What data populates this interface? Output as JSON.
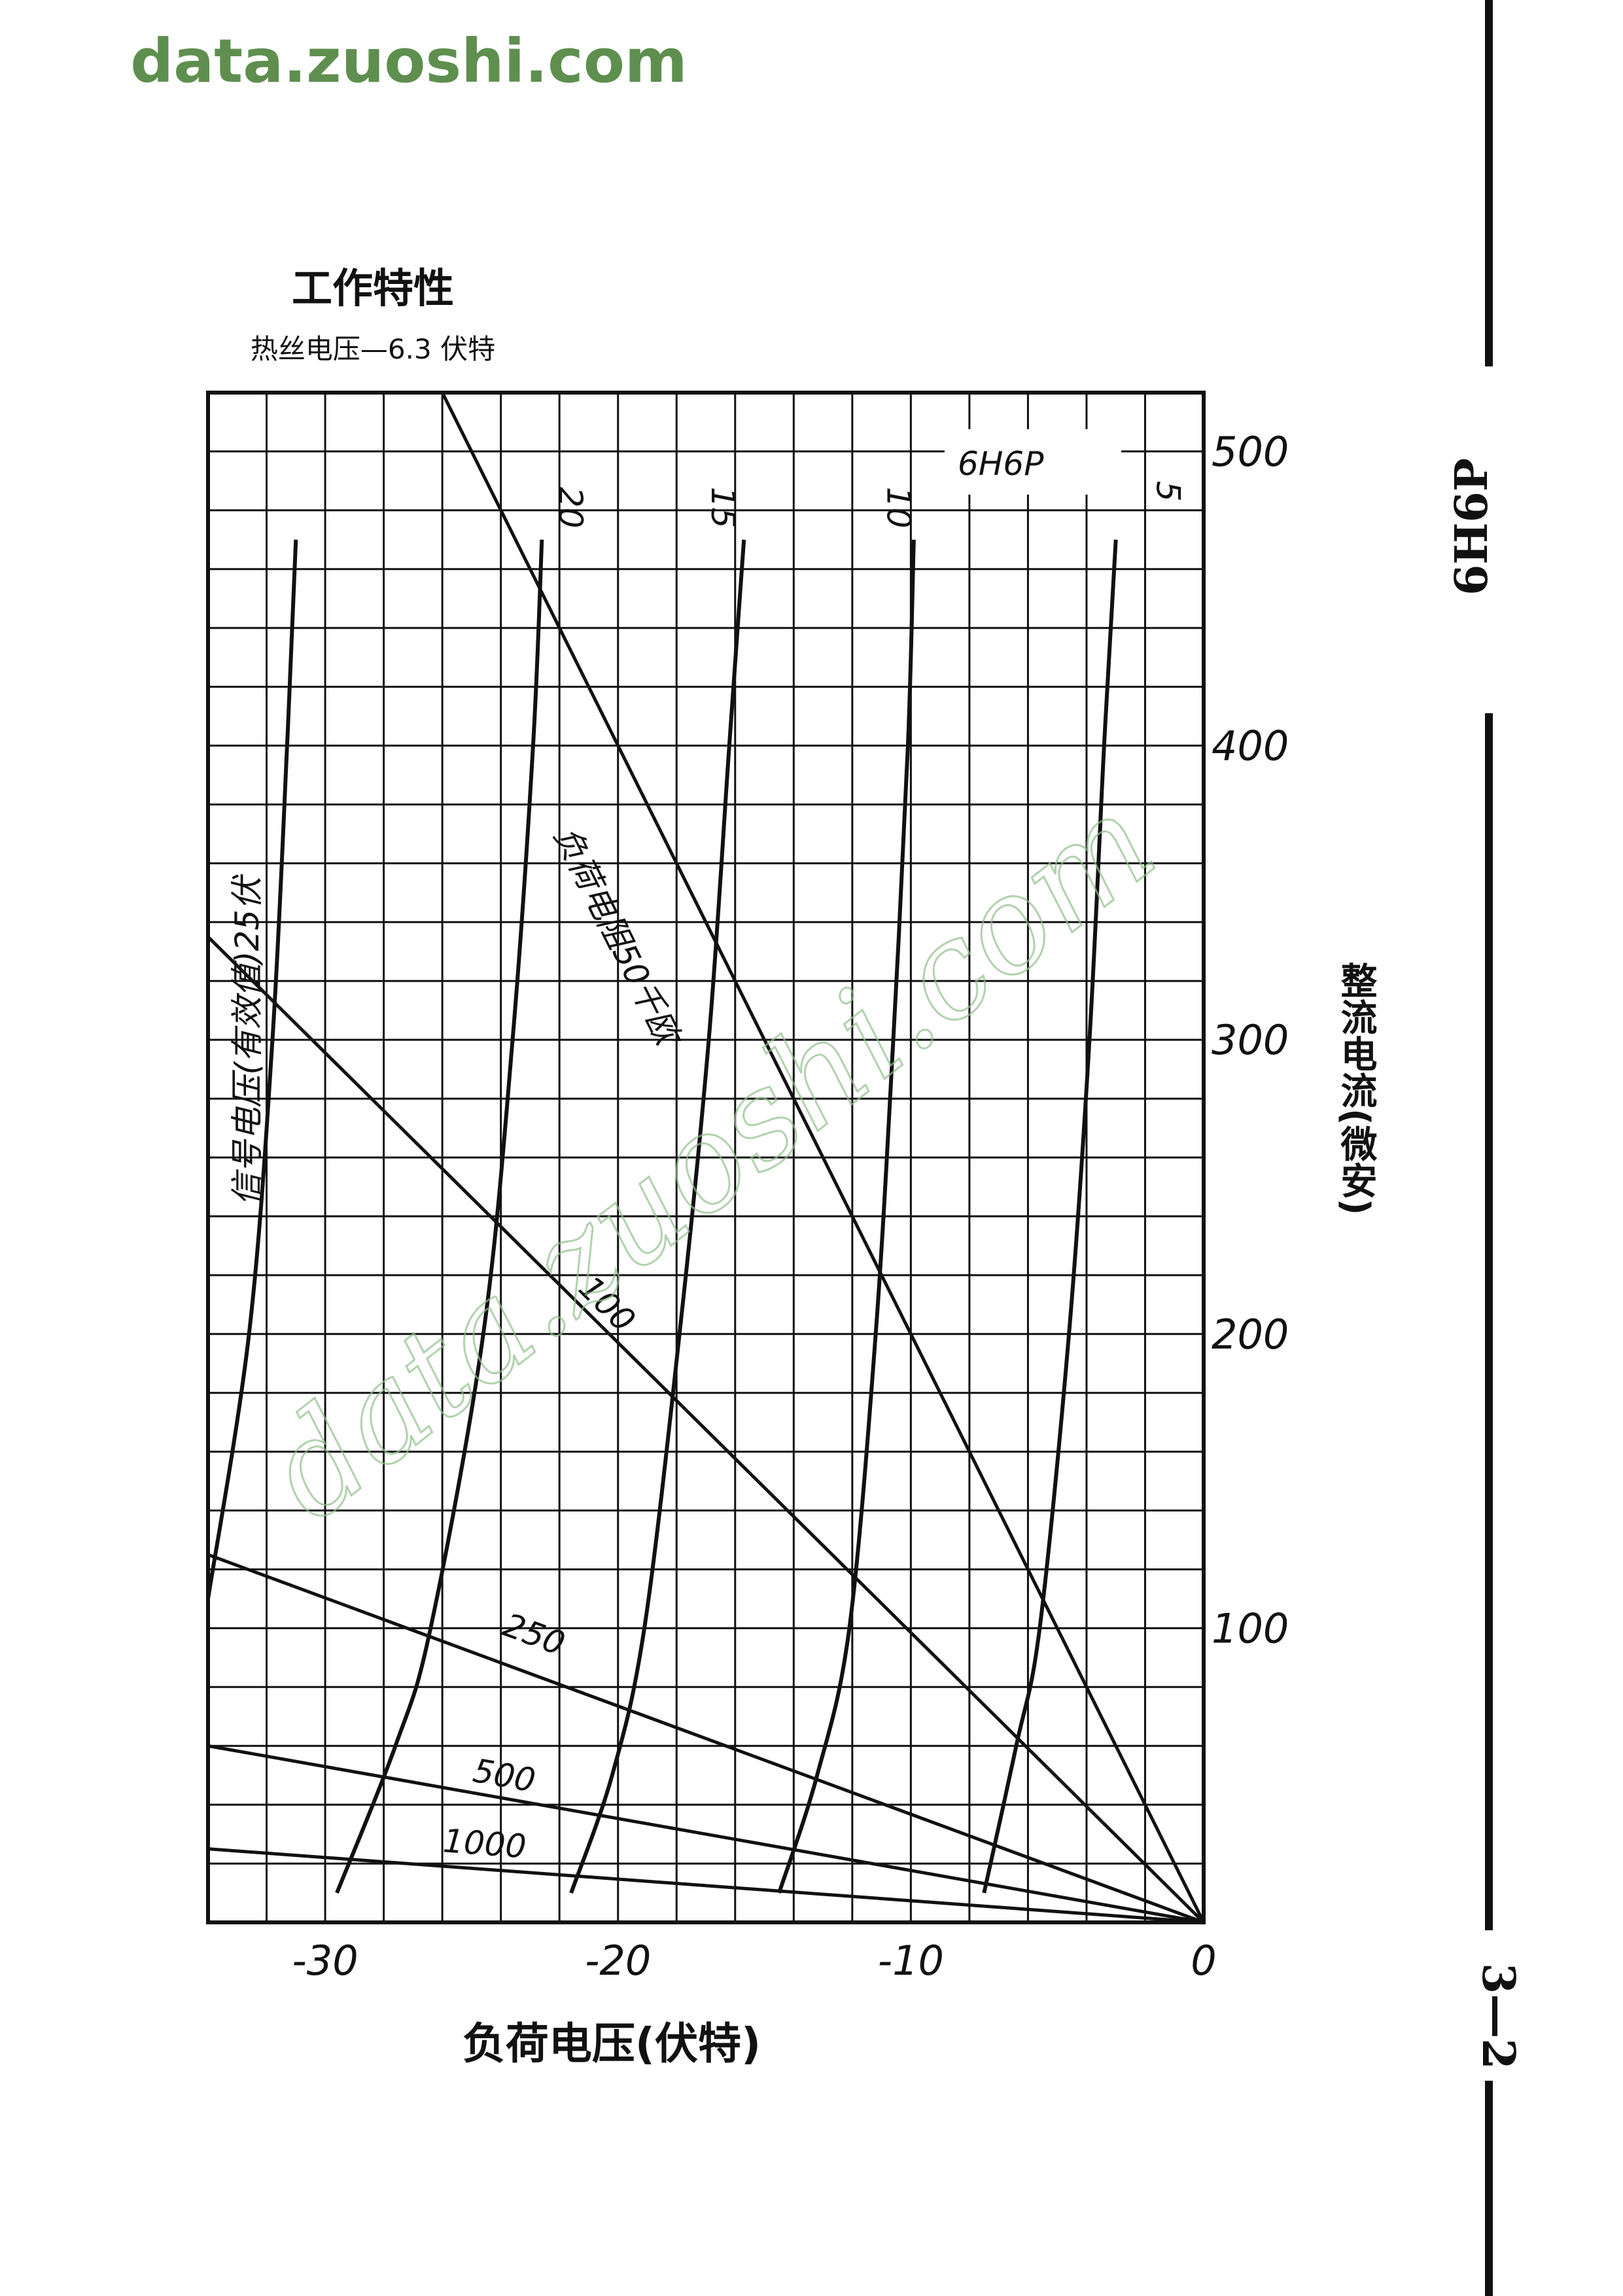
{
  "watermark": "data.zuoshi.com",
  "watermark_diagonal": "data.zuoshi.com",
  "side": {
    "tube_code": "6H6P",
    "page_number": "3—2"
  },
  "chart_data": {
    "type": "line",
    "title": "工作特性",
    "subtitle": "热丝电压—6.3 伏特",
    "tube_label": "6H6P",
    "xlabel": "负荷电压(伏特)",
    "ylabel": "整流电流(微安)",
    "xlim": [
      -34,
      0
    ],
    "ylim": [
      0,
      520
    ],
    "x_ticks": [
      -30,
      -20,
      -10,
      0
    ],
    "x_tick_labels": [
      "-30",
      "-20",
      "-10",
      "0"
    ],
    "y_ticks": [
      100,
      200,
      300,
      400,
      500
    ],
    "y_tick_labels": [
      "100",
      "200",
      "300",
      "400",
      "500"
    ],
    "grid": true,
    "signal_label": "信号电压(有效值)25伏",
    "signal_series": [
      {
        "name": "25",
        "points": [
          [
            -34,
            110
          ],
          [
            -32.6,
            200
          ],
          [
            -31.8,
            300
          ],
          [
            -31.3,
            400
          ],
          [
            -31,
            470
          ]
        ]
      },
      {
        "name": "20",
        "points": [
          [
            -29.6,
            10
          ],
          [
            -27.6,
            60
          ],
          [
            -26.4,
            100
          ],
          [
            -24.6,
            200
          ],
          [
            -23.6,
            300
          ],
          [
            -22.9,
            400
          ],
          [
            -22.6,
            470
          ]
        ]
      },
      {
        "name": "15",
        "points": [
          [
            -21.6,
            10
          ],
          [
            -20.2,
            50
          ],
          [
            -19.1,
            100
          ],
          [
            -17.9,
            200
          ],
          [
            -16.9,
            300
          ],
          [
            -16.2,
            400
          ],
          [
            -15.7,
            470
          ]
        ]
      },
      {
        "name": "10",
        "points": [
          [
            -14.5,
            10
          ],
          [
            -13.2,
            50
          ],
          [
            -12.1,
            100
          ],
          [
            -11.2,
            200
          ],
          [
            -10.6,
            300
          ],
          [
            -10.1,
            400
          ],
          [
            -9.9,
            470
          ]
        ]
      },
      {
        "name": "5",
        "points": [
          [
            -7.5,
            10
          ],
          [
            -6.4,
            60
          ],
          [
            -5.6,
            100
          ],
          [
            -4.6,
            200
          ],
          [
            -3.9,
            300
          ],
          [
            -3.4,
            400
          ],
          [
            -3.0,
            470
          ]
        ]
      }
    ],
    "load_lines": [
      {
        "name": "负荷电阻50千欧",
        "points": [
          [
            -26,
            520
          ],
          [
            0,
            0
          ]
        ],
        "label_at": [
          -22.2,
          370
        ]
      },
      {
        "name": "100",
        "points": [
          [
            -34,
            335
          ],
          [
            0,
            0
          ]
        ],
        "label_at": [
          -21.4,
          215
        ]
      },
      {
        "name": "250",
        "points": [
          [
            -34,
            125
          ],
          [
            0,
            0
          ]
        ],
        "label_at": [
          -24,
          98
        ]
      },
      {
        "name": "500",
        "points": [
          [
            -34,
            60
          ],
          [
            0,
            0
          ]
        ],
        "label_at": [
          -25,
          48
        ]
      },
      {
        "name": "1000",
        "points": [
          [
            -34,
            25
          ],
          [
            0,
            0
          ]
        ],
        "label_at": [
          -26,
          24
        ]
      }
    ],
    "curve_labels": [
      {
        "text": "20",
        "at": [
          -22.0,
          488
        ]
      },
      {
        "text": "15",
        "at": [
          -16.8,
          488
        ]
      },
      {
        "text": "10",
        "at": [
          -10.8,
          488
        ]
      },
      {
        "text": "5",
        "at": [
          -1.6,
          490
        ]
      }
    ]
  }
}
